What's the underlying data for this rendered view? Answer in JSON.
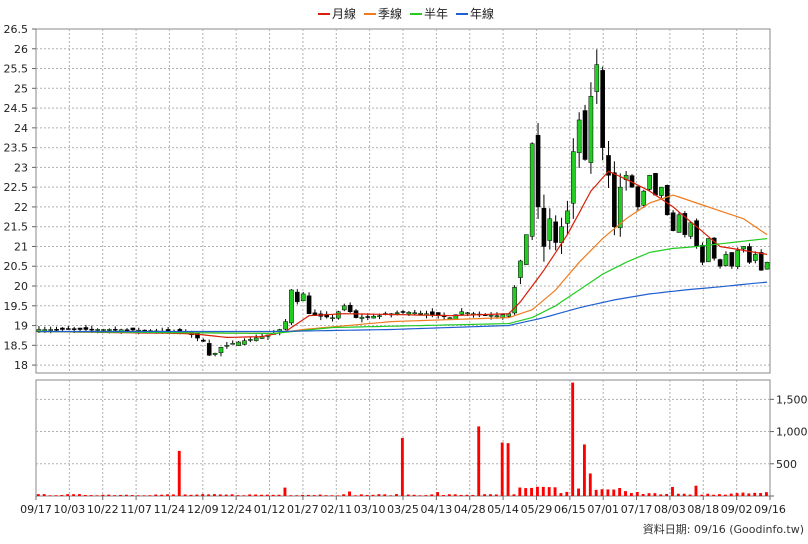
{
  "legend": [
    {
      "label": "月線",
      "color": "#d81e06"
    },
    {
      "label": "季線",
      "color": "#f07b1e"
    },
    {
      "label": "半年",
      "color": "#22cc22"
    },
    {
      "label": "年線",
      "color": "#1f5fd0"
    }
  ],
  "footer": "資料日期: 09/16 (Goodinfo.tw)",
  "chart_data": {
    "type": "candlestick",
    "x_ticks": [
      "09/17",
      "10/03",
      "10/22",
      "11/07",
      "11/24",
      "12/09",
      "12/24",
      "01/12",
      "01/27",
      "02/11",
      "03/10",
      "03/25",
      "04/13",
      "04/28",
      "05/14",
      "05/29",
      "06/15",
      "07/01",
      "07/17",
      "08/03",
      "08/18",
      "09/02",
      "09/16"
    ],
    "price_axis": {
      "ylim": [
        17.8,
        26.5
      ],
      "ticks": [
        18,
        18.5,
        19,
        19.5,
        20,
        20.5,
        21,
        21.5,
        22,
        22.5,
        23,
        23.5,
        24,
        24.5,
        25,
        25.5,
        26,
        26.5
      ]
    },
    "volume_axis": {
      "ylim": [
        0,
        1800
      ],
      "ticks": [
        0,
        500,
        1000,
        1500
      ],
      "tick_labels": [
        "500",
        "1,000",
        "1,500"
      ]
    },
    "grid": true,
    "up_color": "#22cc22",
    "down_color": "#000000",
    "volume_color": "#ff0000",
    "price_path": [
      [
        0,
        18.9
      ],
      [
        12,
        18.9
      ],
      [
        18,
        18.88
      ],
      [
        22,
        18.85
      ],
      [
        25,
        18.85
      ],
      [
        28,
        18.6
      ],
      [
        29,
        18.25
      ],
      [
        30,
        18.3
      ],
      [
        31,
        18.45
      ],
      [
        33,
        18.55
      ],
      [
        36,
        18.65
      ],
      [
        40,
        18.8
      ],
      [
        41,
        18.9
      ],
      [
        42,
        19.1
      ],
      [
        43,
        19.9
      ],
      [
        44,
        19.6
      ],
      [
        45,
        19.8
      ],
      [
        46,
        19.3
      ],
      [
        47,
        19.25
      ],
      [
        50,
        19.2
      ],
      [
        52,
        19.5
      ],
      [
        54,
        19.2
      ],
      [
        58,
        19.25
      ],
      [
        62,
        19.35
      ],
      [
        66,
        19.3
      ],
      [
        70,
        19.2
      ],
      [
        72,
        19.35
      ],
      [
        74,
        19.3
      ],
      [
        78,
        19.25
      ],
      [
        80,
        19.3
      ],
      [
        83,
        21.3
      ],
      [
        84,
        23.6
      ],
      [
        85,
        22.0
      ],
      [
        86,
        21.0
      ],
      [
        87,
        21.7
      ],
      [
        88,
        21.1
      ],
      [
        89,
        21.5
      ],
      [
        90,
        21.9
      ],
      [
        91,
        23.4
      ],
      [
        92,
        24.2
      ],
      [
        93,
        23.2
      ],
      [
        94,
        24.8
      ],
      [
        95,
        25.6
      ],
      [
        96,
        23.5
      ],
      [
        97,
        22.8
      ],
      [
        98,
        21.5
      ],
      [
        99,
        22.5
      ],
      [
        100,
        22.8
      ],
      [
        101,
        22.5
      ],
      [
        102,
        22.0
      ],
      [
        103,
        22.4
      ],
      [
        104,
        22.8
      ],
      [
        105,
        22.3
      ],
      [
        106,
        22.5
      ],
      [
        107,
        21.8
      ],
      [
        108,
        21.4
      ],
      [
        109,
        21.8
      ],
      [
        110,
        21.3
      ],
      [
        111,
        21.6
      ],
      [
        112,
        21.0
      ],
      [
        113,
        20.6
      ],
      [
        114,
        21.2
      ],
      [
        115,
        20.7
      ],
      [
        116,
        20.5
      ],
      [
        117,
        20.8
      ],
      [
        118,
        20.5
      ],
      [
        119,
        20.9
      ],
      [
        120,
        21.0
      ],
      [
        121,
        20.6
      ],
      [
        122,
        20.8
      ],
      [
        123,
        20.4
      ],
      [
        124,
        20.6
      ]
    ],
    "ma_lines": [
      {
        "name": "月線",
        "color": "#d81e06",
        "points": [
          [
            0,
            18.85
          ],
          [
            24,
            18.8
          ],
          [
            27,
            18.78
          ],
          [
            32,
            18.7
          ],
          [
            38,
            18.72
          ],
          [
            42,
            18.85
          ],
          [
            46,
            19.25
          ],
          [
            52,
            19.3
          ],
          [
            60,
            19.28
          ],
          [
            70,
            19.25
          ],
          [
            80,
            19.3
          ],
          [
            82,
            19.6
          ],
          [
            86,
            20.4
          ],
          [
            90,
            21.3
          ],
          [
            94,
            22.4
          ],
          [
            97,
            22.9
          ],
          [
            100,
            22.7
          ],
          [
            104,
            22.4
          ],
          [
            108,
            22.0
          ],
          [
            112,
            21.5
          ],
          [
            116,
            21.0
          ],
          [
            120,
            20.9
          ],
          [
            124,
            20.8
          ]
        ]
      },
      {
        "name": "季線",
        "color": "#f07b1e",
        "points": [
          [
            0,
            18.85
          ],
          [
            40,
            18.8
          ],
          [
            45,
            18.9
          ],
          [
            60,
            19.1
          ],
          [
            80,
            19.2
          ],
          [
            84,
            19.4
          ],
          [
            88,
            19.9
          ],
          [
            92,
            20.6
          ],
          [
            96,
            21.2
          ],
          [
            100,
            21.7
          ],
          [
            104,
            22.1
          ],
          [
            108,
            22.3
          ],
          [
            112,
            22.1
          ],
          [
            116,
            21.9
          ],
          [
            120,
            21.7
          ],
          [
            124,
            21.3
          ]
        ]
      },
      {
        "name": "半年",
        "color": "#22cc22",
        "points": [
          [
            0,
            18.85
          ],
          [
            40,
            18.8
          ],
          [
            50,
            18.95
          ],
          [
            80,
            19.05
          ],
          [
            84,
            19.2
          ],
          [
            88,
            19.5
          ],
          [
            92,
            19.9
          ],
          [
            96,
            20.3
          ],
          [
            100,
            20.6
          ],
          [
            104,
            20.85
          ],
          [
            108,
            20.95
          ],
          [
            112,
            21.0
          ],
          [
            118,
            21.1
          ],
          [
            124,
            21.2
          ]
        ]
      },
      {
        "name": "年線",
        "color": "#1f5fd0",
        "points": [
          [
            0,
            18.85
          ],
          [
            40,
            18.85
          ],
          [
            60,
            18.9
          ],
          [
            80,
            19.0
          ],
          [
            86,
            19.2
          ],
          [
            92,
            19.45
          ],
          [
            98,
            19.65
          ],
          [
            104,
            19.8
          ],
          [
            110,
            19.9
          ],
          [
            116,
            19.98
          ],
          [
            124,
            20.1
          ]
        ]
      }
    ],
    "volume_spikes": [
      [
        23.5,
        700
      ],
      [
        41.5,
        130
      ],
      [
        53,
        70
      ],
      [
        62,
        900
      ],
      [
        68,
        60
      ],
      [
        75,
        1080
      ],
      [
        78.5,
        830
      ],
      [
        79.5,
        820
      ],
      [
        91,
        1760
      ],
      [
        92.5,
        800
      ],
      [
        94,
        350
      ],
      [
        108,
        140
      ],
      [
        112,
        160
      ]
    ]
  }
}
